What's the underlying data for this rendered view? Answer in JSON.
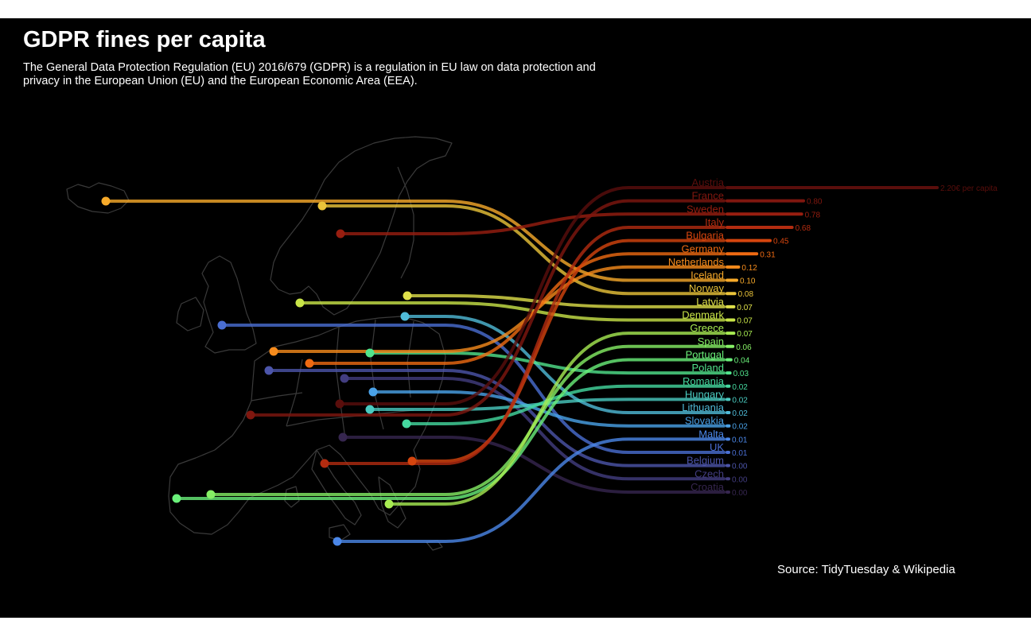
{
  "title": "GDPR fines per capita",
  "subtitle": "The General Data Protection Regulation (EU) 2016/679 (GDPR) is a regulation in EU law on data protection and privacy in the European Union (EU) and the European Economic Area (EEA).",
  "source": "Source: TidyTuesday & Wikipedia",
  "colors": {
    "background": "#000000",
    "text": "#ffffff",
    "map_outline": "#3a3a3a"
  },
  "chart_data": {
    "type": "bump map / bar",
    "value_unit_label": "€ per capita",
    "countries": [
      {
        "name": "Austria",
        "value_label": "2.20€ per capita",
        "value": 2.2,
        "color": "#5a0e0c"
      },
      {
        "name": "France",
        "value_label": "0.80",
        "value": 0.8,
        "color": "#80170f"
      },
      {
        "name": "Sweden",
        "value_label": "0.78",
        "value": 0.78,
        "color": "#981e10"
      },
      {
        "name": "Italy",
        "value_label": "0.68",
        "value": 0.68,
        "color": "#b32c10"
      },
      {
        "name": "Bulgaria",
        "value_label": "0.45",
        "value": 0.45,
        "color": "#d6450e"
      },
      {
        "name": "Germany",
        "value_label": "0.31",
        "value": 0.31,
        "color": "#ef6a12"
      },
      {
        "name": "Netherlands",
        "value_label": "0.12",
        "value": 0.12,
        "color": "#f68b1c"
      },
      {
        "name": "Iceland",
        "value_label": "0.10",
        "value": 0.1,
        "color": "#f7aa2a"
      },
      {
        "name": "Norway",
        "value_label": "0.08",
        "value": 0.08,
        "color": "#ebc43a"
      },
      {
        "name": "Latvia",
        "value_label": "0.07",
        "value": 0.07,
        "color": "#dfe04a"
      },
      {
        "name": "Denmark",
        "value_label": "0.07",
        "value": 0.07,
        "color": "#c9e548"
      },
      {
        "name": "Greece",
        "value_label": "0.07",
        "value": 0.07,
        "color": "#a8ec52"
      },
      {
        "name": "Spain",
        "value_label": "0.06",
        "value": 0.06,
        "color": "#86f065"
      },
      {
        "name": "Portugal",
        "value_label": "0.04",
        "value": 0.04,
        "color": "#6af07a"
      },
      {
        "name": "Poland",
        "value_label": "0.03",
        "value": 0.03,
        "color": "#51e48c"
      },
      {
        "name": "Romania",
        "value_label": "0.02",
        "value": 0.02,
        "color": "#45d9a0"
      },
      {
        "name": "Hungary",
        "value_label": "0.02",
        "value": 0.02,
        "color": "#4acbc0"
      },
      {
        "name": "Lithuania",
        "value_label": "0.02",
        "value": 0.02,
        "color": "#50bbd8"
      },
      {
        "name": "Slovakia",
        "value_label": "0.02",
        "value": 0.02,
        "color": "#4aa2e8"
      },
      {
        "name": "Malta",
        "value_label": "0.01",
        "value": 0.01,
        "color": "#4b87e8"
      },
      {
        "name": "UK",
        "value_label": "0.01",
        "value": 0.01,
        "color": "#4a6ed2"
      },
      {
        "name": "Belgium",
        "value_label": "0.00",
        "value": 0.004,
        "color": "#4c55aa"
      },
      {
        "name": "Czech",
        "value_label": "0.00",
        "value": 0.003,
        "color": "#423d80"
      },
      {
        "name": "Croatia",
        "value_label": "0.00",
        "value": 0.002,
        "color": "#36264f"
      }
    ]
  }
}
